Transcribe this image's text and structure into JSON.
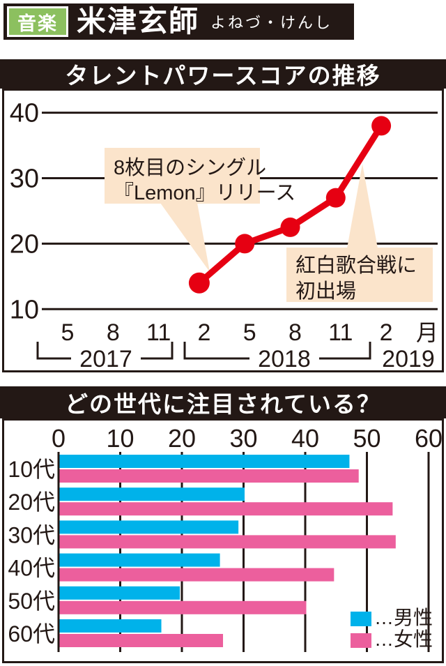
{
  "header": {
    "category_badge": "音楽",
    "artist_name": "米津玄師",
    "artist_reading": "よねづ・けんし"
  },
  "colors": {
    "ink": "#231815",
    "accent_red": "#e60012",
    "male_blue": "#00b2ea",
    "female_pink": "#ec5f9d",
    "callout_bg": "#fbe4cb",
    "callout_text": "#3a332f",
    "badge_green": "#8cc05f"
  },
  "chart_data": [
    {
      "type": "line",
      "title": "タレントパワースコアの推移",
      "ylim": [
        10,
        40
      ],
      "y_ticks": [
        40,
        30,
        20,
        10
      ],
      "x_ticks": [
        "5",
        "8",
        "11",
        "2",
        "5",
        "8",
        "11",
        "2"
      ],
      "x_unit": "月",
      "year_groups": [
        {
          "label": "2017",
          "tick_count": 3
        },
        {
          "label": "2018",
          "tick_count": 4
        },
        {
          "label": "2019",
          "tick_count": 1
        }
      ],
      "points": [
        {
          "year": "2018",
          "month": "2",
          "value": 14
        },
        {
          "year": "2018",
          "month": "5",
          "value": 20
        },
        {
          "year": "2018",
          "month": "8",
          "value": 22.5
        },
        {
          "year": "2018",
          "month": "11",
          "value": 27
        },
        {
          "year": "2019",
          "month": "2",
          "value": 38
        }
      ],
      "annotations": [
        {
          "lines": [
            "8枚目のシングル",
            "『Lemon』リリース"
          ],
          "points_to": "2018-2"
        },
        {
          "lines": [
            "紅白歌合戦に",
            "初出場"
          ],
          "points_to": "2019-2"
        }
      ],
      "grid": "horizontal-only",
      "legend_position": "none"
    },
    {
      "type": "bar",
      "title": "どの世代に注目されている？",
      "orientation": "horizontal",
      "xlim": [
        0,
        60
      ],
      "x_ticks": [
        0,
        10,
        20,
        30,
        40,
        50,
        60
      ],
      "categories": [
        "10代",
        "20代",
        "30代",
        "40代",
        "50代",
        "60代"
      ],
      "series": [
        {
          "name": "男性",
          "color_key": "male_blue",
          "values": [
            47,
            30,
            29,
            26,
            19.5,
            16.5
          ]
        },
        {
          "name": "女性",
          "color_key": "female_pink",
          "values": [
            48.5,
            54,
            54.5,
            44.5,
            40,
            26.5
          ]
        }
      ],
      "legend": [
        {
          "label": "…男性",
          "color_key": "male_blue"
        },
        {
          "label": "…女性",
          "color_key": "female_pink"
        }
      ],
      "legend_position": "bottom-right",
      "grid": "vertical-only"
    }
  ]
}
